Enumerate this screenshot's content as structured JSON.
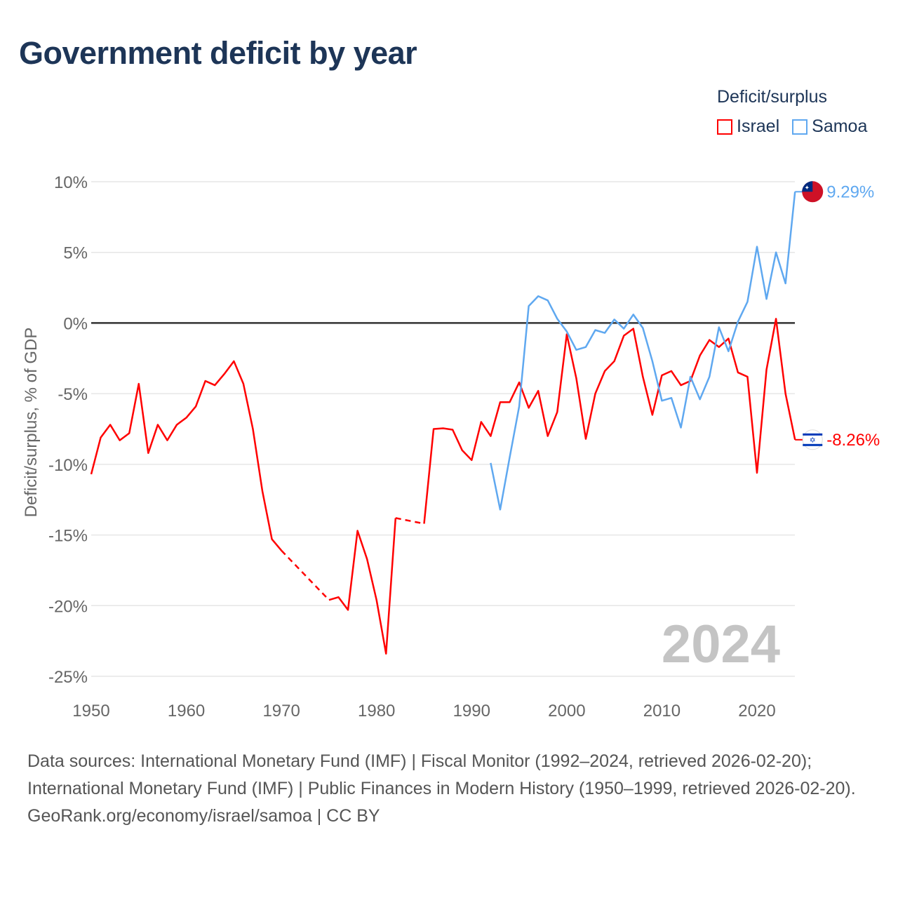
{
  "title": "Government deficit by year",
  "chart_data": {
    "type": "line",
    "title": "Government deficit by year",
    "xlabel": "",
    "ylabel": "Deficit/surplus, % of GDP",
    "xlim": [
      1950,
      2024
    ],
    "ylim": [
      -25,
      10
    ],
    "x_ticks": [
      "1950",
      "1960",
      "1970",
      "1980",
      "1990",
      "2000",
      "2010",
      "2020"
    ],
    "y_ticks": [
      {
        "v": 10,
        "label": "10%"
      },
      {
        "v": 5,
        "label": "5%"
      },
      {
        "v": 0,
        "label": "0%"
      },
      {
        "v": -5,
        "label": "-5%"
      },
      {
        "v": -10,
        "label": "-10%"
      },
      {
        "v": -15,
        "label": "-15%"
      },
      {
        "v": -20,
        "label": "-20%"
      },
      {
        "v": -25,
        "label": "-25%"
      }
    ],
    "grid": true,
    "legend_title": "Deficit/surplus",
    "legend_position": "top-right",
    "year_label": "2024",
    "series": [
      {
        "name": "Israel",
        "color": "#ff0000",
        "end_label": "-8.26%",
        "flag": "israel-flag",
        "start_year": 1950,
        "values": [
          -10.7,
          -8.1,
          -7.2,
          -8.3,
          -7.8,
          -4.3,
          -9.2,
          -7.2,
          -8.3,
          -7.2,
          -6.7,
          -5.9,
          -4.1,
          -4.4,
          -3.6,
          -2.7,
          -4.3,
          -7.5,
          -11.9,
          -15.3,
          -16.1,
          null,
          null,
          null,
          null,
          -19.6,
          -19.4,
          -20.3,
          -14.7,
          -16.7,
          -19.6,
          -23.4,
          -13.8,
          null,
          null,
          -14.2,
          -7.5,
          -7.45,
          -7.55,
          -9.0,
          -9.7,
          -7.0,
          -8.0,
          -5.6,
          -5.6,
          -4.2,
          -6.0,
          -4.8,
          -8.0,
          -6.3,
          -0.8,
          -3.9,
          -8.2,
          -5.0,
          -3.4,
          -2.7,
          -0.9,
          -0.4,
          -3.8,
          -6.5,
          -3.7,
          -3.4,
          -4.4,
          -4.1,
          -2.3,
          -1.2,
          -1.7,
          -1.1,
          -3.5,
          -3.8,
          -10.6,
          -3.3,
          0.3,
          -5.0,
          -8.26
        ]
      },
      {
        "name": "Samoa",
        "color": "#5fa8f0",
        "end_label": "9.29%",
        "flag": "samoa-flag",
        "start_year": 1992,
        "values": [
          -9.9,
          -13.2,
          -9.5,
          -5.9,
          1.2,
          1.9,
          1.6,
          0.3,
          -0.6,
          -1.9,
          -1.7,
          -0.5,
          -0.7,
          0.25,
          -0.4,
          0.6,
          -0.35,
          -2.7,
          -5.5,
          -5.3,
          -7.4,
          -3.8,
          -5.4,
          -3.8,
          -0.3,
          -2.0,
          0.1,
          1.5,
          5.4,
          1.7,
          5.0,
          2.8,
          9.29
        ]
      }
    ]
  },
  "footer": {
    "sources": "Data sources: International Monetary Fund (IMF) | Fiscal Monitor (1992–2024, retrieved 2026-02-20); International Monetary Fund (IMF) | Public Finances in Modern History (1950–1999, retrieved 2026-02-20).",
    "credit": "GeoRank.org/economy/israel/samoa | CC BY"
  }
}
